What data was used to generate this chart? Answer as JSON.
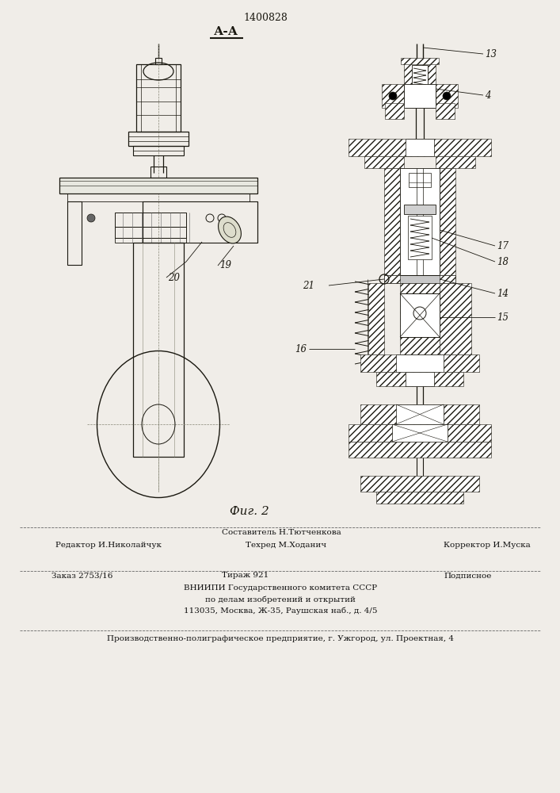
{
  "patent_number": "1400828",
  "section_label": "А-А",
  "fig_label": "Фиг. 2",
  "bg_color": "#f0ede8",
  "line_color": "#1a1810",
  "footer": {
    "line1_top_center": "Составитель Н.Тютченкова",
    "line1_left": "Редактор И.Николайчук",
    "line1_center": "Техред М.Хoданич",
    "line1_right": "Корректор И.Муска",
    "line2_left": "Заказ 2753/16",
    "line2_center": "Тираж 921",
    "line2_right": "Подписное",
    "line3": "ВНИИПИ Государственного комитета СССР",
    "line4": "по делам изобретений и открытий",
    "line5": "113035, Москва, Ж-35, Раушская наб., д. 4/5",
    "line_last": "Производственно-полиграфическое предприятие, г. Ужгород, ул. Проектная, 4"
  },
  "figsize": [
    7.07,
    10.0
  ],
  "dpi": 100
}
